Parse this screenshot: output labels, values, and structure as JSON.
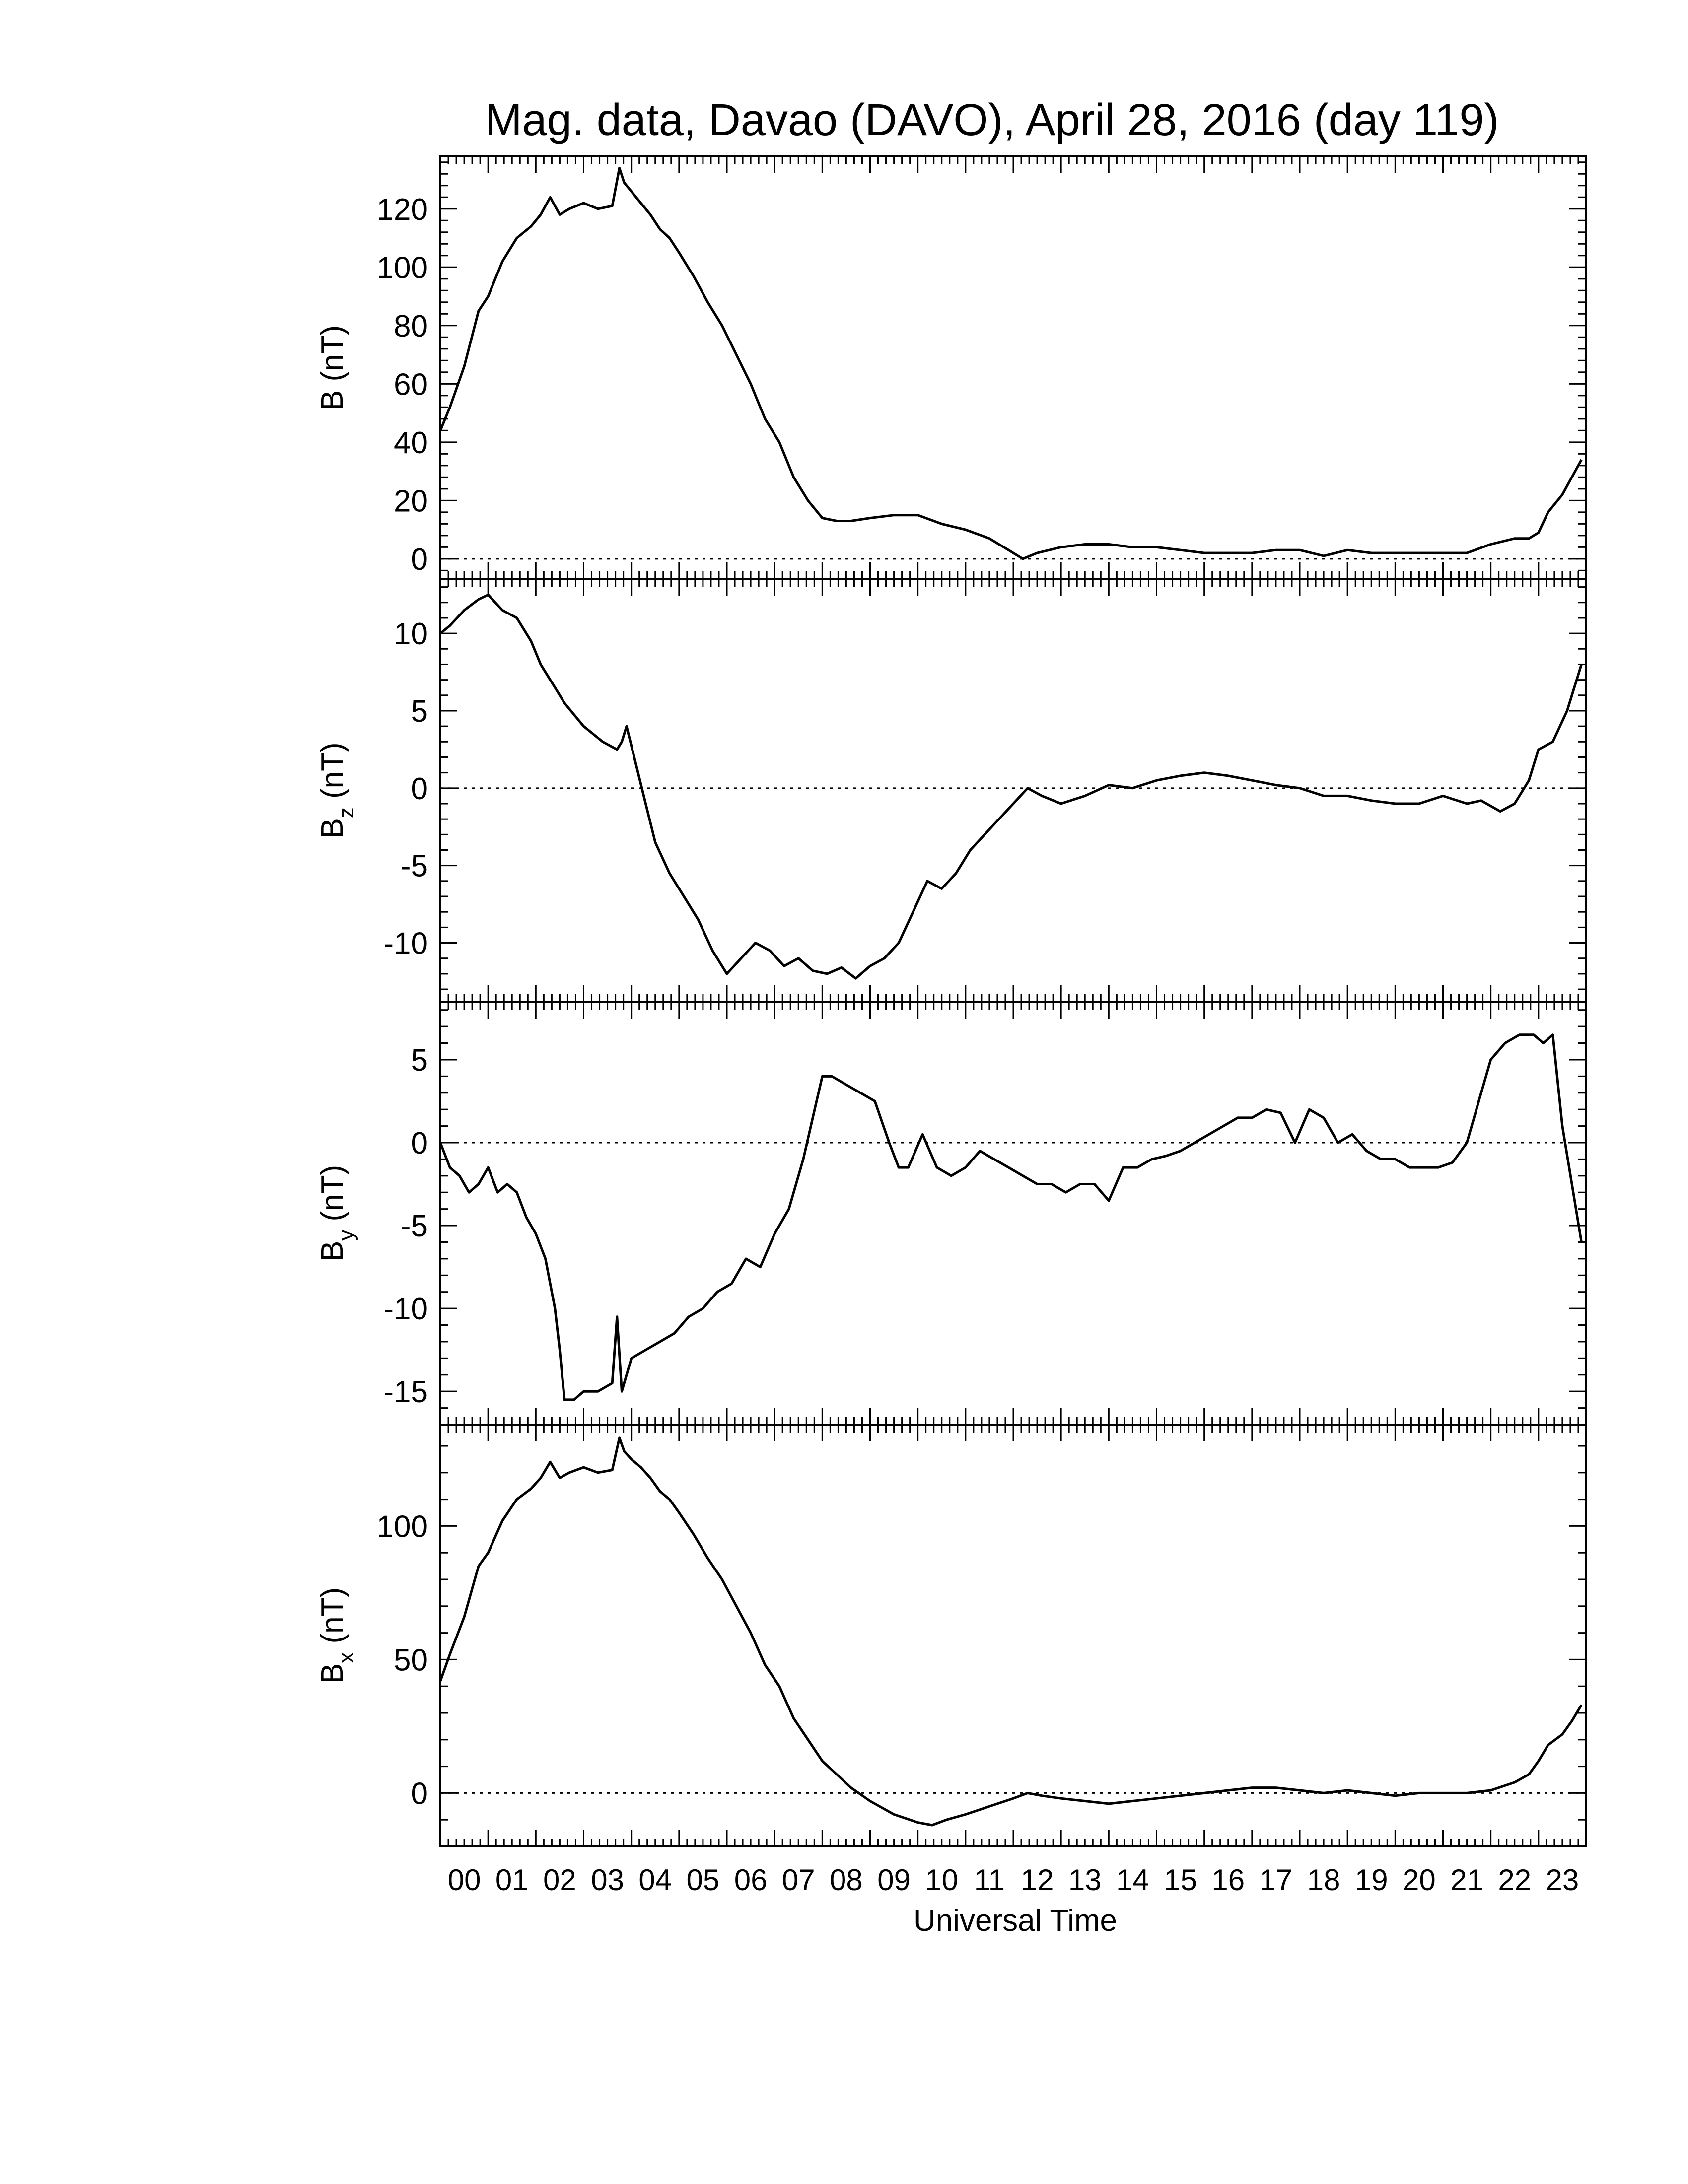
{
  "chart_data": {
    "type": "line",
    "title": "Mag. data, Davao (DAVO), April 28, 2016 (day 119)",
    "xlabel": "Universal Time",
    "xlim": [
      0,
      24
    ],
    "x_tick_labels": [
      "00",
      "01",
      "02",
      "03",
      "04",
      "05",
      "06",
      "07",
      "08",
      "09",
      "10",
      "11",
      "12",
      "13",
      "14",
      "15",
      "16",
      "17",
      "18",
      "19",
      "20",
      "21",
      "22",
      "23"
    ],
    "grid": false,
    "panels": [
      {
        "ylabel_main": "B",
        "ylabel_sub": "",
        "ylabel_unit": "(nT)",
        "ylim": [
          -7,
          138
        ],
        "yticks": [
          0,
          20,
          40,
          60,
          80,
          100,
          120
        ],
        "zero_line": true,
        "series": [
          {
            "x": [
              0,
              0.2,
              0.5,
              0.8,
              1.0,
              1.3,
              1.6,
              1.9,
              2.1,
              2.3,
              2.5,
              2.7,
              3.0,
              3.3,
              3.6,
              3.75,
              3.85,
              4.0,
              4.2,
              4.4,
              4.6,
              4.8,
              5.0,
              5.3,
              5.6,
              5.9,
              6.2,
              6.5,
              6.8,
              7.1,
              7.4,
              7.7,
              8.0,
              8.3,
              8.6,
              9.0,
              9.5,
              10.0,
              10.5,
              11.0,
              11.5,
              12.0,
              12.2,
              12.5,
              13.0,
              13.5,
              14.0,
              14.5,
              15.0,
              15.5,
              16.0,
              16.5,
              17.0,
              17.5,
              18.0,
              18.5,
              19.0,
              19.5,
              20.0,
              20.5,
              21.0,
              21.5,
              22.0,
              22.5,
              22.8,
              23.0,
              23.2,
              23.5,
              23.7,
              23.9
            ],
            "y": [
              44,
              52,
              66,
              85,
              90,
              102,
              110,
              114,
              118,
              124,
              118,
              120,
              122,
              120,
              121,
              134,
              129,
              126,
              122,
              118,
              113,
              110,
              105,
              97,
              88,
              80,
              70,
              60,
              48,
              40,
              28,
              20,
              14,
              13,
              13,
              14,
              15,
              15,
              12,
              10,
              7,
              2,
              0,
              2,
              4,
              5,
              5,
              4,
              4,
              3,
              2,
              2,
              2,
              3,
              3,
              1,
              3,
              2,
              2,
              2,
              2,
              2,
              5,
              7,
              7,
              9,
              16,
              22,
              28,
              34
            ]
          }
        ]
      },
      {
        "ylabel_main": "B",
        "ylabel_sub": "z",
        "ylabel_unit": "(nT)",
        "ylim": [
          -13.8,
          13.5
        ],
        "yticks": [
          -10,
          -5,
          0,
          5,
          10
        ],
        "zero_line": true,
        "series": [
          {
            "x": [
              0,
              0.2,
              0.5,
              0.8,
              1.0,
              1.3,
              1.6,
              1.9,
              2.1,
              2.3,
              2.6,
              3.0,
              3.4,
              3.7,
              3.8,
              3.9,
              4.1,
              4.3,
              4.5,
              4.8,
              5.1,
              5.4,
              5.7,
              6.0,
              6.3,
              6.6,
              6.9,
              7.2,
              7.5,
              7.8,
              8.1,
              8.4,
              8.7,
              9.0,
              9.3,
              9.6,
              9.9,
              10.2,
              10.5,
              10.8,
              11.1,
              11.4,
              11.7,
              12.0,
              12.3,
              12.6,
              13.0,
              13.5,
              14.0,
              14.5,
              15.0,
              15.5,
              16.0,
              16.5,
              17.0,
              17.5,
              18.0,
              18.5,
              19.0,
              19.5,
              20.0,
              20.5,
              21.0,
              21.5,
              21.8,
              22.2,
              22.5,
              22.8,
              23.0,
              23.3,
              23.6,
              23.9
            ],
            "y": [
              10,
              10.5,
              11.5,
              12.2,
              12.5,
              11.5,
              11,
              9.5,
              8,
              7,
              5.5,
              4,
              3,
              2.5,
              3,
              4,
              1.5,
              -1,
              -3.5,
              -5.5,
              -7,
              -8.5,
              -10.5,
              -12,
              -11,
              -10,
              -10.5,
              -11.5,
              -11,
              -11.8,
              -12,
              -11.6,
              -12.3,
              -11.5,
              -11,
              -10,
              -8,
              -6,
              -6.5,
              -5.5,
              -4,
              -3,
              -2,
              -1,
              0,
              -0.5,
              -1,
              -0.5,
              0.2,
              0,
              0.5,
              0.8,
              1,
              0.8,
              0.5,
              0.2,
              0,
              -0.5,
              -0.5,
              -0.8,
              -1,
              -1,
              -0.5,
              -1,
              -0.8,
              -1.5,
              -1,
              0.5,
              2.5,
              3,
              5,
              8
            ]
          }
        ]
      },
      {
        "ylabel_main": "B",
        "ylabel_sub": "y",
        "ylabel_unit": "(nT)",
        "ylim": [
          -17,
          8.5
        ],
        "yticks": [
          -15,
          -10,
          -5,
          0,
          5
        ],
        "zero_line": true,
        "series": [
          {
            "x": [
              0,
              0.2,
              0.4,
              0.6,
              0.8,
              1.0,
              1.2,
              1.4,
              1.6,
              1.8,
              2.0,
              2.2,
              2.4,
              2.5,
              2.6,
              2.8,
              3.0,
              3.3,
              3.6,
              3.7,
              3.8,
              4.0,
              4.3,
              4.6,
              4.9,
              5.2,
              5.5,
              5.8,
              6.1,
              6.4,
              6.7,
              7.0,
              7.3,
              7.6,
              7.8,
              8.0,
              8.2,
              8.5,
              8.8,
              9.1,
              9.4,
              9.6,
              9.8,
              10.1,
              10.4,
              10.7,
              11.0,
              11.3,
              11.6,
              11.9,
              12.2,
              12.5,
              12.8,
              13.1,
              13.4,
              13.7,
              14.0,
              14.3,
              14.6,
              14.9,
              15.2,
              15.5,
              15.8,
              16.1,
              16.4,
              16.7,
              17.0,
              17.3,
              17.6,
              17.9,
              18.2,
              18.5,
              18.8,
              19.1,
              19.4,
              19.7,
              20.0,
              20.3,
              20.6,
              20.9,
              21.2,
              21.5,
              21.8,
              22.0,
              22.3,
              22.6,
              22.9,
              23.1,
              23.3,
              23.5,
              23.7,
              23.9
            ],
            "y": [
              0,
              -1.5,
              -2,
              -3,
              -2.5,
              -1.5,
              -3,
              -2.5,
              -3,
              -4.5,
              -5.5,
              -7,
              -10,
              -12.5,
              -15.5,
              -15.5,
              -15,
              -15,
              -14.5,
              -10.5,
              -15,
              -13,
              -12.5,
              -12,
              -11.5,
              -10.5,
              -10,
              -9,
              -8.5,
              -7,
              -7.5,
              -5.5,
              -4,
              -1,
              1.5,
              4,
              4,
              3.5,
              3,
              2.5,
              0,
              -1.5,
              -1.5,
              0.5,
              -1.5,
              -2,
              -1.5,
              -0.5,
              -1,
              -1.5,
              -2,
              -2.5,
              -2.5,
              -3,
              -2.5,
              -2.5,
              -3.5,
              -1.5,
              -1.5,
              -1,
              -0.8,
              -0.5,
              0,
              0.5,
              1,
              1.5,
              1.5,
              2,
              1.8,
              0,
              2,
              1.5,
              0,
              0.5,
              -0.5,
              -1,
              -1,
              -1.5,
              -1.5,
              -1.5,
              -1.2,
              0,
              3,
              5,
              6,
              6.5,
              6.5,
              6,
              6.5,
              1,
              -2.5,
              -6
            ]
          }
        ]
      },
      {
        "ylabel_main": "B",
        "ylabel_sub": "x",
        "ylabel_unit": "(nT)",
        "ylim": [
          -20,
          138
        ],
        "yticks": [
          0,
          50,
          100
        ],
        "zero_line": true,
        "series": [
          {
            "x": [
              0,
              0.2,
              0.5,
              0.8,
              1.0,
              1.3,
              1.6,
              1.9,
              2.1,
              2.3,
              2.5,
              2.7,
              3.0,
              3.3,
              3.6,
              3.75,
              3.85,
              4.0,
              4.2,
              4.4,
              4.6,
              4.8,
              5.0,
              5.3,
              5.6,
              5.9,
              6.2,
              6.5,
              6.8,
              7.1,
              7.4,
              7.7,
              8.0,
              8.3,
              8.6,
              9.0,
              9.5,
              10.0,
              10.3,
              10.6,
              11.0,
              11.5,
              12.0,
              12.3,
              12.6,
              13.0,
              13.5,
              14.0,
              14.5,
              15.0,
              15.5,
              16.0,
              16.5,
              17.0,
              17.5,
              18.0,
              18.5,
              19.0,
              19.5,
              20.0,
              20.5,
              21.0,
              21.5,
              22.0,
              22.5,
              22.8,
              23.0,
              23.2,
              23.5,
              23.7,
              23.9
            ],
            "y": [
              42,
              52,
              66,
              85,
              90,
              102,
              110,
              114,
              118,
              124,
              118,
              120,
              122,
              120,
              121,
              133,
              128,
              125,
              122,
              118,
              113,
              110,
              105,
              97,
              88,
              80,
              70,
              60,
              48,
              40,
              28,
              20,
              12,
              7,
              2,
              -3,
              -8,
              -11,
              -12,
              -10,
              -8,
              -5,
              -2,
              0,
              -1,
              -2,
              -3,
              -4,
              -3,
              -2,
              -1,
              0,
              1,
              2,
              2,
              1,
              0,
              1,
              0,
              -1,
              0,
              0,
              0,
              1,
              4,
              7,
              12,
              18,
              22,
              27,
              33
            ]
          }
        ]
      }
    ]
  }
}
